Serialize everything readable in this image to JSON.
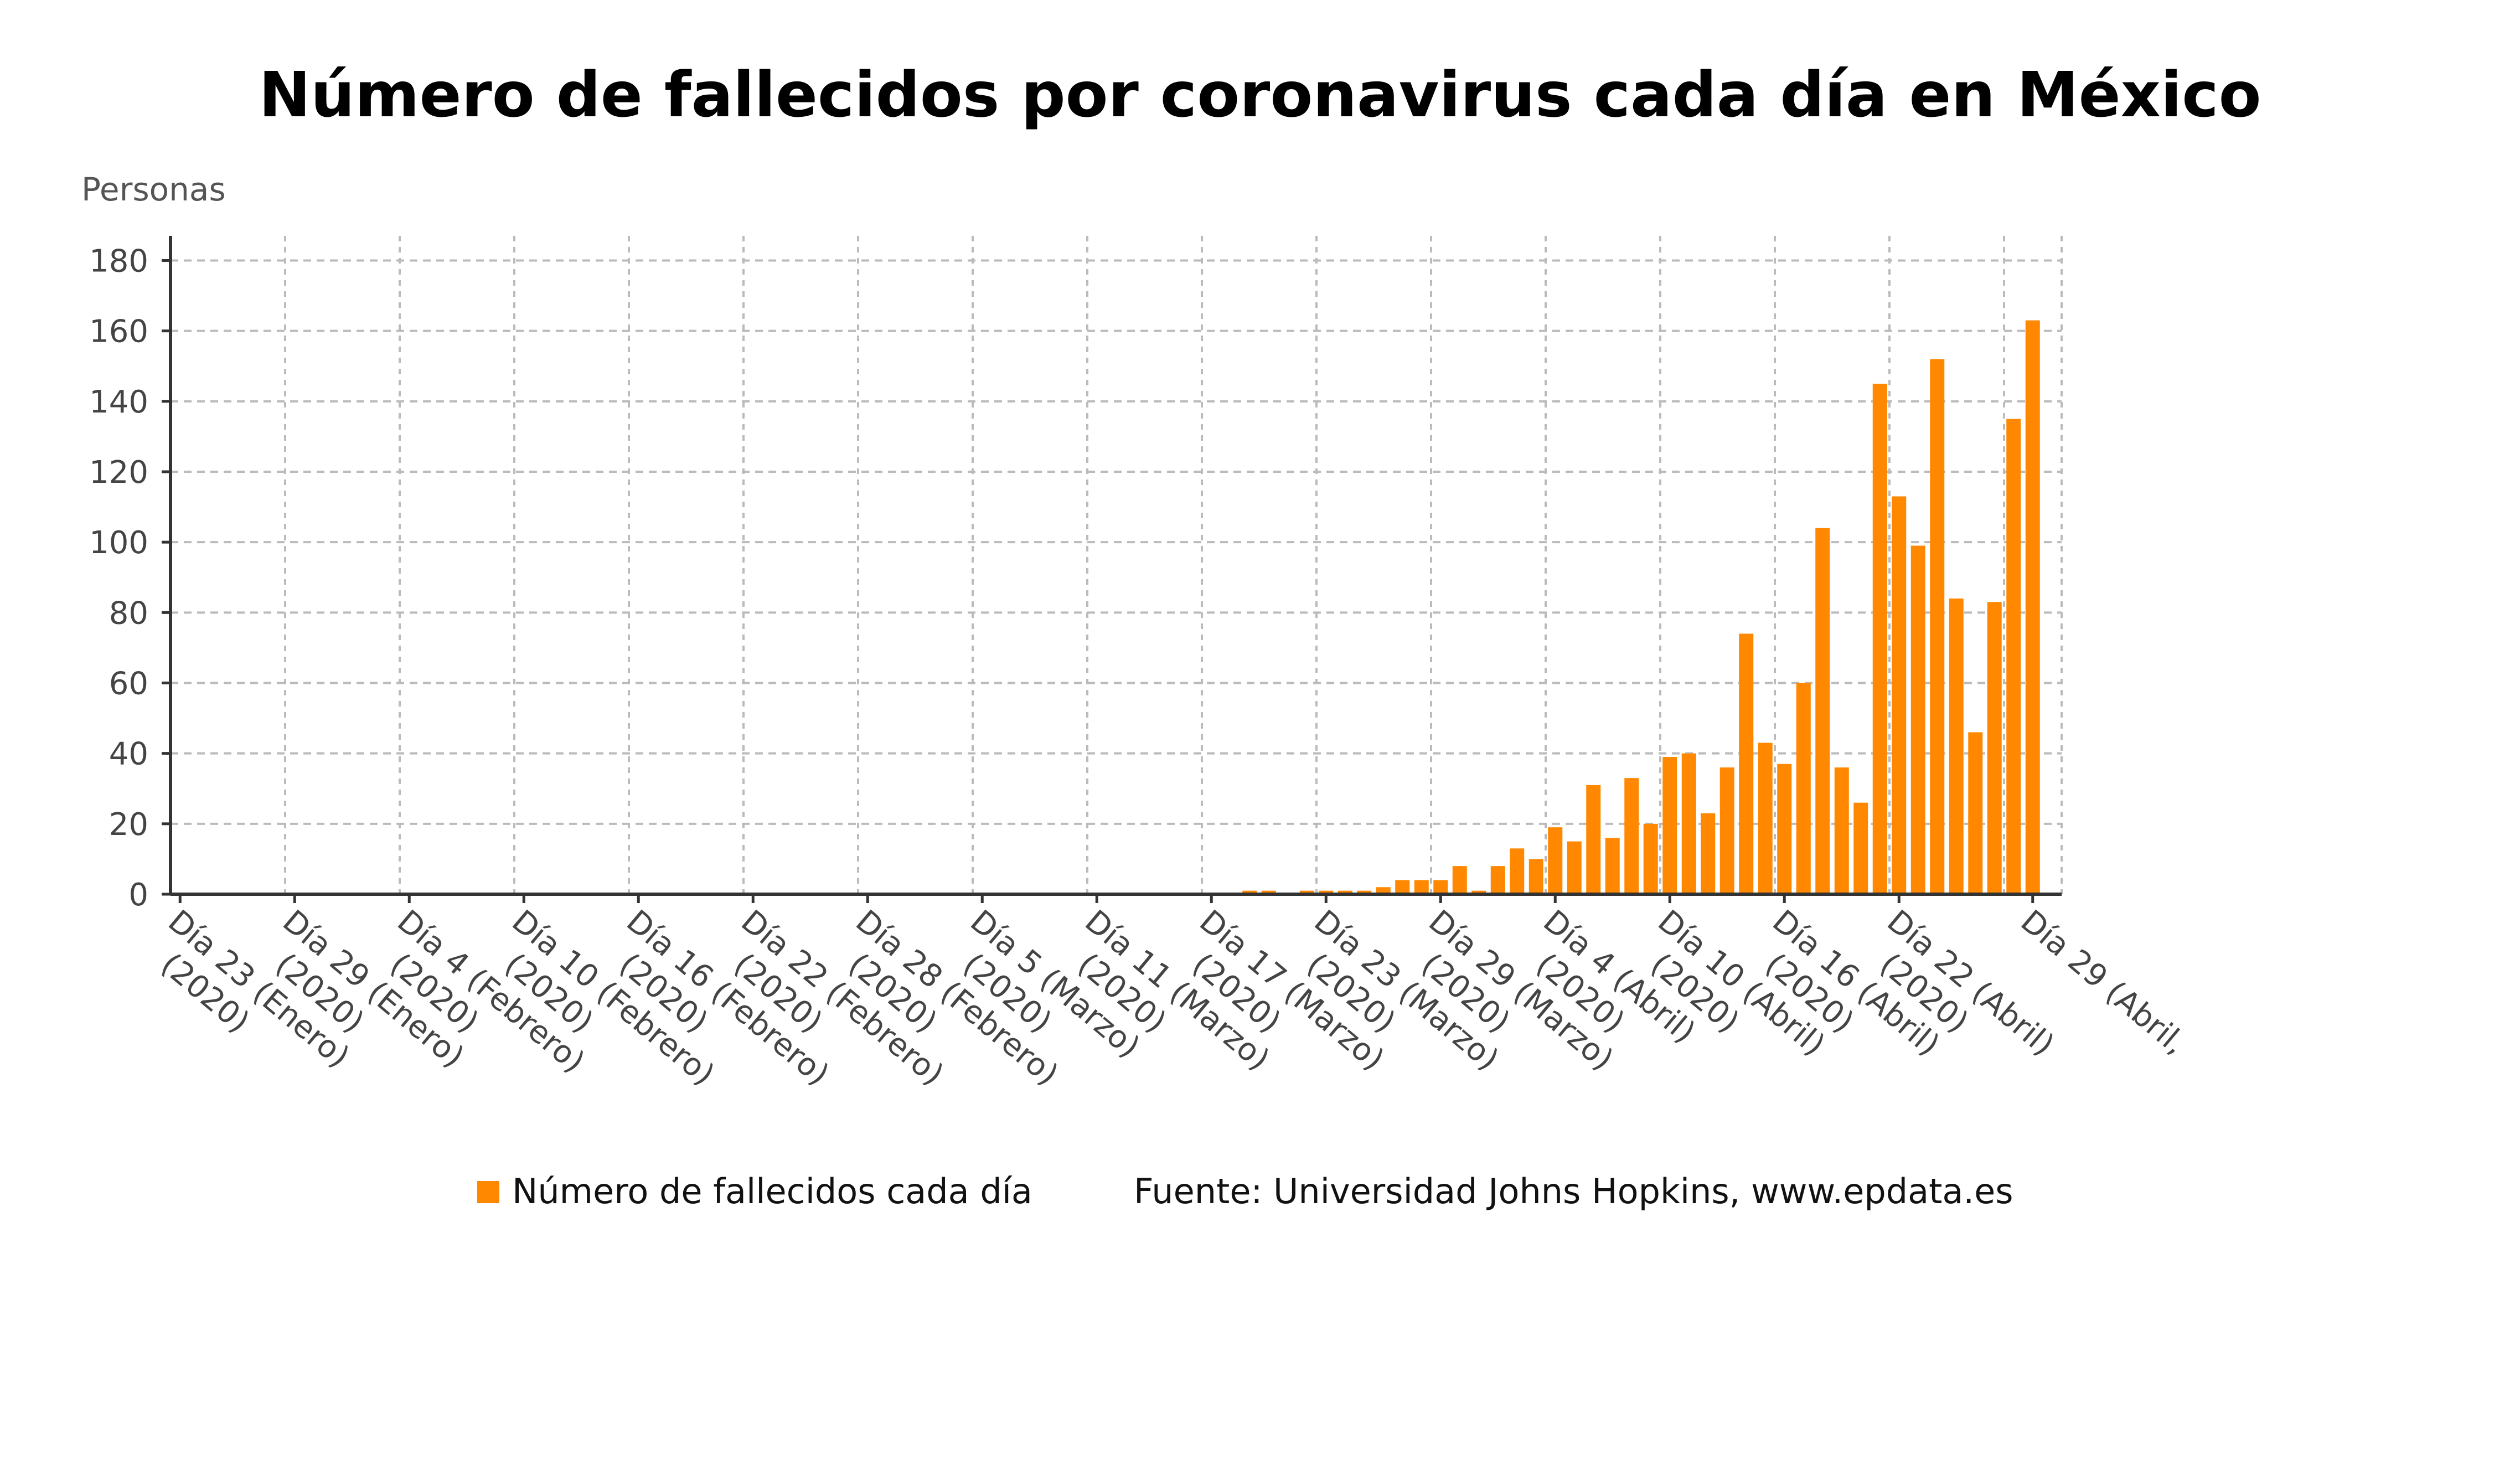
{
  "chart_data": {
    "type": "bar",
    "title": "Número de fallecidos por coronavirus cada día en México",
    "ylabel": "Personas",
    "xlabel": "",
    "ylim": [
      0,
      187
    ],
    "yticks": [
      0,
      20,
      40,
      60,
      80,
      100,
      120,
      140,
      160,
      180
    ],
    "grid": true,
    "start_date": "2020-01-23",
    "xtick_labels": [
      {
        "day_index": 0,
        "line1": "Día 23 (Enero)",
        "line2": "(2020)"
      },
      {
        "day_index": 6,
        "line1": "Día 29 (Enero)",
        "line2": "(2020)"
      },
      {
        "day_index": 12,
        "line1": "Día 4 (Febrero)",
        "line2": "(2020)"
      },
      {
        "day_index": 18,
        "line1": "Día 10 (Febrero)",
        "line2": "(2020)"
      },
      {
        "day_index": 24,
        "line1": "Día 16 (Febrero)",
        "line2": "(2020)"
      },
      {
        "day_index": 30,
        "line1": "Día 22 (Febrero)",
        "line2": "(2020)"
      },
      {
        "day_index": 36,
        "line1": "Día 28 (Febrero)",
        "line2": "(2020)"
      },
      {
        "day_index": 42,
        "line1": "Día 5 (Marzo)",
        "line2": "(2020)"
      },
      {
        "day_index": 48,
        "line1": "Día 11 (Marzo)",
        "line2": "(2020)"
      },
      {
        "day_index": 54,
        "line1": "Día 17 (Marzo)",
        "line2": "(2020)"
      },
      {
        "day_index": 60,
        "line1": "Día 23 (Marzo)",
        "line2": "(2020)"
      },
      {
        "day_index": 66,
        "line1": "Día 29 (Marzo)",
        "line2": "(2020)"
      },
      {
        "day_index": 72,
        "line1": "Día 4 (Abril)",
        "line2": "(2020)"
      },
      {
        "day_index": 78,
        "line1": "Día 10 (Abril)",
        "line2": "(2020)"
      },
      {
        "day_index": 84,
        "line1": "Día 16 (Abril)",
        "line2": "(2020)"
      },
      {
        "day_index": 90,
        "line1": "Día 22 (Abril)",
        "line2": "(2020)"
      },
      {
        "day_index": 97,
        "line1": "Día 29 (Abril,",
        "line2": ""
      }
    ],
    "series": [
      {
        "name": "Número de fallecidos cada día",
        "color": "#ff8800",
        "values": [
          0,
          0,
          0,
          0,
          0,
          0,
          0,
          0,
          0,
          0,
          0,
          0,
          0,
          0,
          0,
          0,
          0,
          0,
          0,
          0,
          0,
          0,
          0,
          0,
          0,
          0,
          0,
          0,
          0,
          0,
          0,
          0,
          0,
          0,
          0,
          0,
          0,
          0,
          0,
          0,
          0,
          0,
          0,
          0,
          0,
          0,
          0,
          0,
          0,
          0,
          0,
          0,
          0,
          0,
          0,
          0,
          1,
          1,
          0,
          1,
          1,
          1,
          1,
          2,
          4,
          4,
          4,
          8,
          1,
          8,
          13,
          10,
          19,
          15,
          31,
          16,
          33,
          20,
          39,
          40,
          23,
          36,
          74,
          43,
          37,
          60,
          104,
          36,
          26,
          145,
          113,
          99,
          152,
          84,
          46,
          83,
          135,
          163
        ]
      }
    ],
    "legend_position": "bottom-center",
    "source": "Fuente: Universidad Johns Hopkins, www.epdata.es"
  }
}
